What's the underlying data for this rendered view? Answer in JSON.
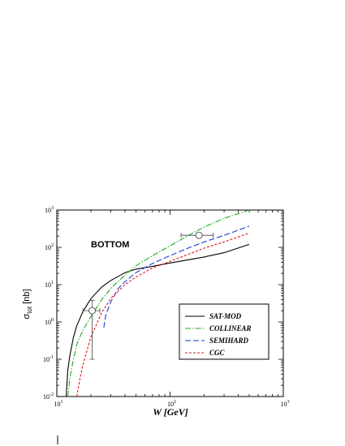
{
  "chart_data": {
    "type": "line",
    "title": "",
    "panel_label": "BOTTOM",
    "xlabel": "W [GeV]",
    "ylabel": {
      "main": "σ",
      "sub": "tot",
      "unit": "[nb]"
    },
    "x_scale": "log",
    "y_scale": "log",
    "xlim": [
      10,
      1000
    ],
    "ylim": [
      0.01,
      1000
    ],
    "x_ticks": [
      {
        "base": "10",
        "exp": "1",
        "value": 10
      },
      {
        "base": "10",
        "exp": "2",
        "value": 100
      },
      {
        "base": "10",
        "exp": "3",
        "value": 1000
      }
    ],
    "y_ticks": [
      {
        "base": "10",
        "exp": "-2",
        "value": 0.01
      },
      {
        "base": "10",
        "exp": "-1",
        "value": 0.1
      },
      {
        "base": "10",
        "exp": "0",
        "value": 1
      },
      {
        "base": "10",
        "exp": "1",
        "value": 10
      },
      {
        "base": "10",
        "exp": "2",
        "value": 100
      },
      {
        "base": "10",
        "exp": "3",
        "value": 1000
      }
    ],
    "legend_position": "lower-right",
    "series": [
      {
        "name": "SAT-MOD",
        "color": "#000000",
        "dash": "solid",
        "x": [
          12.1,
          12.5,
          13,
          14,
          15,
          17,
          20,
          25,
          30,
          40,
          50,
          70,
          100,
          200,
          300,
          500
        ],
        "y": [
          0.01,
          0.05,
          0.12,
          0.38,
          0.8,
          1.9,
          4.2,
          8.7,
          13,
          21,
          26,
          31,
          38,
          55,
          72,
          120
        ]
      },
      {
        "name": "COLLINEAR",
        "color": "#22aa22",
        "dash": "dashdot",
        "x": [
          12.5,
          13,
          14,
          15,
          17,
          20,
          25,
          30,
          40,
          50,
          70,
          100,
          150,
          200,
          300,
          500
        ],
        "y": [
          0.01,
          0.03,
          0.1,
          0.25,
          0.6,
          1.4,
          4,
          8,
          18,
          32,
          60,
          110,
          220,
          350,
          600,
          1000
        ]
      },
      {
        "name": "SEMIHARD",
        "color": "#1a3bdc",
        "dash": "dashed",
        "x": [
          26,
          27,
          30,
          35,
          40,
          50,
          70,
          100,
          150,
          200,
          300,
          500
        ],
        "y": [
          0.7,
          1.5,
          3.5,
          8,
          12,
          21,
          37,
          60,
          100,
          140,
          210,
          370
        ]
      },
      {
        "name": "CGC",
        "color": "#e01818",
        "dash": "shortdash",
        "x": [
          15,
          16,
          17,
          20,
          25,
          30,
          40,
          50,
          70,
          100,
          200,
          300,
          500
        ],
        "y": [
          0.01,
          0.03,
          0.07,
          0.4,
          1.8,
          4.3,
          10,
          16,
          28,
          42,
          95,
          140,
          240
        ]
      }
    ],
    "data_points": [
      {
        "x": 20.5,
        "y": 2,
        "y_low": 0.1,
        "y_high": 3.8,
        "x_low": 17,
        "x_high": 24
      },
      {
        "x": 180,
        "y": 210,
        "y_low": 210,
        "y_high": 210,
        "x_low": 125,
        "x_high": 240
      }
    ]
  }
}
